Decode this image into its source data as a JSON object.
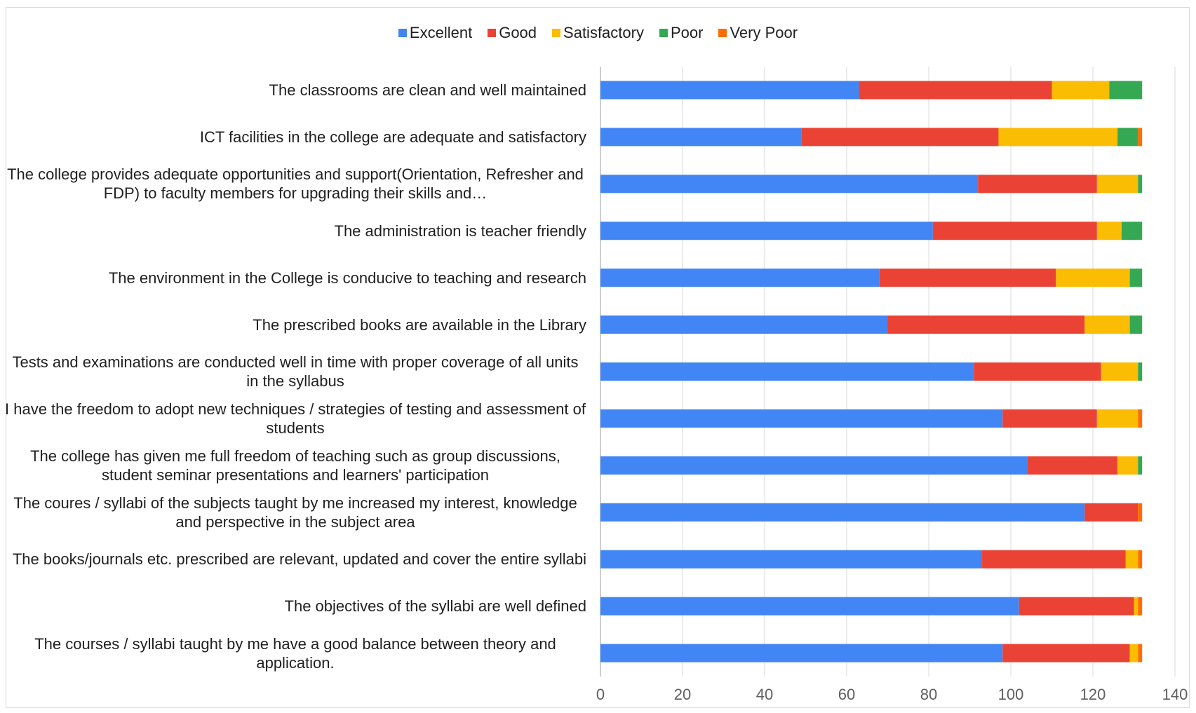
{
  "chart_data": {
    "type": "bar",
    "orientation": "horizontal",
    "stacked": true,
    "legend_position": "top",
    "grid": true,
    "xlim": [
      0,
      140
    ],
    "x_ticks": [
      "0",
      "20",
      "40",
      "60",
      "80",
      "100",
      "120",
      "140"
    ],
    "categories": [
      "The classrooms are clean and well maintained",
      "ICT facilities in the college are adequate and satisfactory",
      "The college provides adequate opportunities and support(Orientation, Refresher and FDP) to faculty members for upgrading their skills and…",
      "The administration is teacher friendly",
      "The environment in the College is conducive to teaching and research",
      "The prescribed books are available in the Library",
      "Tests and examinations are conducted well in time with proper coverage of all units in the syllabus",
      "I have the freedom to adopt new techniques / strategies of testing and assessment of students",
      "The college has given me full freedom of teaching such as group discussions, student seminar presentations and learners' participation",
      "The coures / syllabi of the subjects taught by me increased my interest, knowledge and perspective in the subject area",
      "The books/journals etc. prescribed are relevant, updated and cover the entire syllabi",
      "The objectives of the syllabi are well defined",
      "The courses / syllabi taught by me have a good balance between theory and application."
    ],
    "series": [
      {
        "name": "Excellent",
        "color": "#4285f4",
        "values": [
          63,
          49,
          92,
          81,
          68,
          70,
          91,
          98,
          104,
          118,
          93,
          102,
          98
        ]
      },
      {
        "name": "Good",
        "color": "#ea4335",
        "values": [
          47,
          48,
          29,
          40,
          43,
          48,
          31,
          23,
          22,
          13,
          35,
          28,
          31
        ]
      },
      {
        "name": "Satisfactory",
        "color": "#fbbc04",
        "values": [
          14,
          29,
          10,
          6,
          18,
          11,
          9,
          10,
          5,
          0,
          3,
          1,
          2
        ]
      },
      {
        "name": "Poor",
        "color": "#34a853",
        "values": [
          8,
          5,
          1,
          5,
          3,
          3,
          1,
          0,
          1,
          0,
          0,
          0,
          0
        ]
      },
      {
        "name": "Very Poor",
        "color": "#ff6d01",
        "values": [
          0,
          1,
          0,
          0,
          0,
          0,
          0,
          1,
          0,
          1,
          1,
          1,
          1
        ]
      }
    ]
  }
}
